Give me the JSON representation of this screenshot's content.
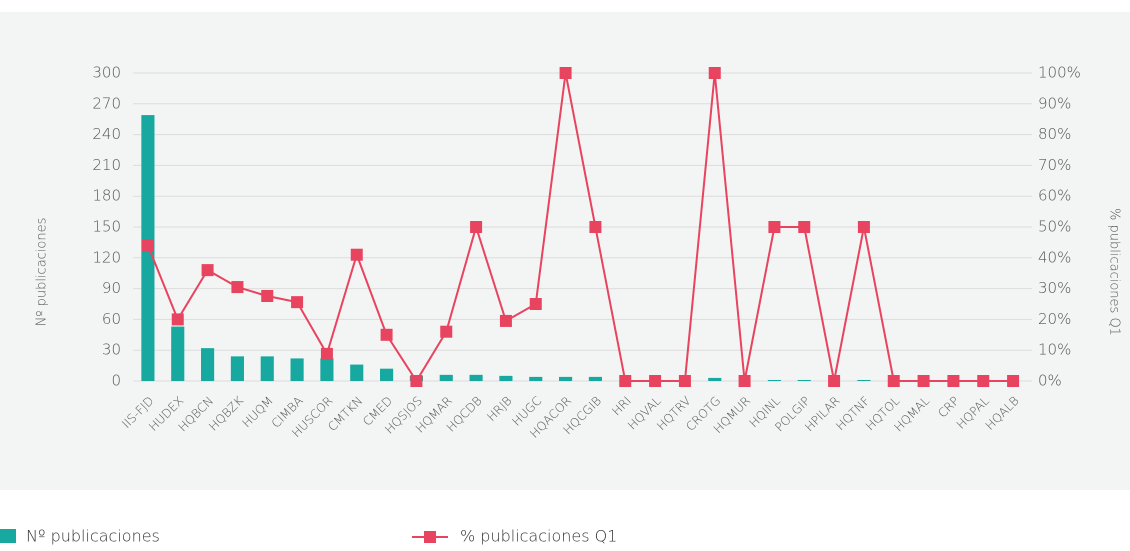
{
  "chart_data": {
    "type": "bar_line",
    "categories": [
      "IIS-FJD",
      "HUDEX",
      "HQBCN",
      "HQBZK",
      "HUQM",
      "CIMBA",
      "HUSCOR",
      "CMTKN",
      "CMED",
      "HQSJOS",
      "HQMAR",
      "HQCDB",
      "HRJB",
      "HUGC",
      "HQACOR",
      "HQCGIB",
      "HRI",
      "HQVAL",
      "HQTRV",
      "CROTG",
      "HQMUR",
      "HQINL",
      "POLGIP",
      "HPILAR",
      "HQTNF",
      "HQTOL",
      "HQMAL",
      "CRP",
      "HQPAL",
      "HQALB"
    ],
    "series": [
      {
        "name": "Nº publicaciones",
        "color": "#17a8a0",
        "kind": "bar",
        "values": [
          259,
          53,
          32,
          24,
          24,
          22,
          22,
          16,
          12,
          5,
          6,
          6,
          5,
          4,
          4,
          4,
          0,
          0,
          0,
          3,
          0,
          1,
          1,
          0,
          1,
          0,
          0,
          0,
          0,
          0
        ]
      },
      {
        "name": "% publicaciones Q1",
        "color": "#e8435f",
        "kind": "line",
        "axis": "y2",
        "values": [
          44,
          20,
          36,
          30.5,
          27.6,
          25.6,
          8.8,
          41,
          15,
          0,
          16,
          50,
          19.5,
          25,
          100,
          50,
          0,
          0,
          0,
          100,
          0,
          50,
          50,
          0,
          50,
          0,
          0,
          0,
          0,
          0
        ]
      }
    ],
    "y_label": "Nº publicaciones",
    "y2_label": "% publicaciones Q1",
    "ylim": [
      0,
      300
    ],
    "yticks": [
      0,
      30,
      60,
      90,
      120,
      150,
      180,
      210,
      240,
      270,
      300
    ],
    "y2lim": [
      0,
      100
    ],
    "y2ticks": [
      {
        "value": 0,
        "label": "0%"
      },
      {
        "value": 10,
        "label": "10%"
      },
      {
        "value": 20,
        "label": "20%"
      },
      {
        "value": 30,
        "label": "30%"
      },
      {
        "value": 40,
        "label": "40%"
      },
      {
        "value": 50,
        "label": "50%"
      },
      {
        "value": 60,
        "label": "60%"
      },
      {
        "value": 70,
        "label": "70%"
      },
      {
        "value": 80,
        "label": "80%"
      },
      {
        "value": 90,
        "label": "90%"
      },
      {
        "value": 100,
        "label": "100%"
      }
    ],
    "grid": true
  }
}
